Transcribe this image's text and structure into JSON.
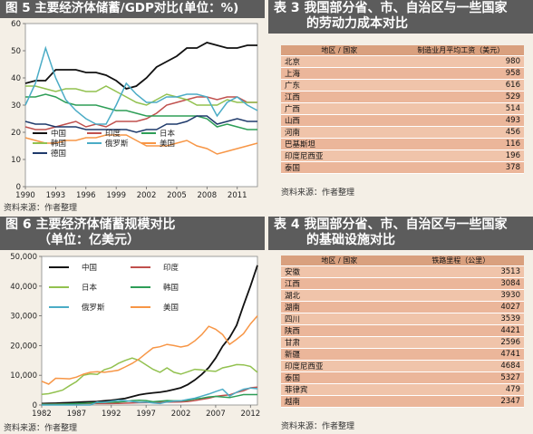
{
  "panels": {
    "fig5": {
      "title": "图 5  主要经济体储蓄/GDP对比(单位：%)",
      "source": "资料来源：作者整理"
    },
    "fig6": {
      "title1": "图 6  主要经济体储蓄规模对比",
      "title2": "（单位：亿美元）",
      "source": "资料来源：作者整理"
    },
    "tab3": {
      "title1": "表 3  我国部分省、市、自治区与一些国家",
      "title2": "的劳动力成本对比",
      "source": "资料来源：作者整理"
    },
    "tab4": {
      "title1": "表 4  我国部分省、市、自治区与一些国家",
      "title2": "的基础设施对比",
      "source": "资料来源：作者整理"
    }
  },
  "chart_data": [
    {
      "type": "line",
      "title": "图 5  主要经济体储蓄/GDP对比(单位：%)",
      "x": [
        1990,
        1991,
        1992,
        1993,
        1994,
        1995,
        1996,
        1997,
        1998,
        1999,
        2000,
        2001,
        2002,
        2003,
        2004,
        2005,
        2006,
        2007,
        2008,
        2009,
        2010,
        2011,
        2012,
        2013
      ],
      "xticks": [
        1990,
        1993,
        1996,
        1999,
        2002,
        2005,
        2008,
        2011
      ],
      "ylim": [
        0,
        60
      ],
      "yticks": [
        0,
        10,
        20,
        30,
        40,
        50,
        60
      ],
      "legend_position": "bottom-left",
      "series": [
        {
          "name": "中国",
          "color": "#111111",
          "values": [
            38,
            39,
            39,
            43,
            43,
            43,
            42,
            42,
            41,
            39,
            36,
            37,
            40,
            44,
            46,
            48,
            51,
            51,
            53,
            52,
            51,
            51,
            52,
            52
          ]
        },
        {
          "name": "印度",
          "color": "#c0504d",
          "values": [
            22,
            21,
            21,
            22,
            23,
            24,
            22,
            23,
            22,
            24,
            24,
            24,
            25,
            27,
            30,
            31,
            32,
            33,
            33,
            32,
            33,
            33,
            31,
            31
          ]
        },
        {
          "name": "日本",
          "color": "#2e9e57",
          "values": [
            33,
            33,
            34,
            33,
            31,
            30,
            30,
            30,
            29,
            28,
            28,
            27,
            26,
            26,
            26,
            26,
            26,
            26,
            25,
            22,
            23,
            22,
            21,
            21
          ]
        },
        {
          "name": "韩国",
          "color": "#92c14f",
          "values": [
            37,
            37,
            36,
            35,
            36,
            36,
            35,
            35,
            37,
            35,
            33,
            31,
            30,
            32,
            34,
            33,
            32,
            30,
            30,
            30,
            32,
            31,
            31,
            31
          ]
        },
        {
          "name": "俄罗斯",
          "color": "#4bacc6",
          "values": [
            30,
            38,
            51,
            40,
            32,
            28,
            25,
            23,
            23,
            30,
            38,
            34,
            31,
            31,
            33,
            33,
            34,
            34,
            33,
            26,
            31,
            33,
            30,
            28
          ]
        },
        {
          "name": "美国",
          "color": "#f79646",
          "values": [
            18,
            17,
            16,
            16,
            17,
            17,
            18,
            18,
            19,
            19,
            19,
            17,
            15,
            15,
            15,
            16,
            17,
            15,
            14,
            12,
            13,
            14,
            15,
            16
          ]
        },
        {
          "name": "德国",
          "color": "#1f3a6b",
          "values": [
            24,
            23,
            23,
            22,
            22,
            22,
            21,
            21,
            21,
            21,
            21,
            20,
            21,
            21,
            23,
            23,
            24,
            26,
            26,
            23,
            24,
            25,
            24,
            24
          ]
        }
      ]
    },
    {
      "type": "line",
      "title": "图 6  主要经济体储蓄规模对比（单位：亿美元）",
      "x": [
        1982,
        1983,
        1984,
        1985,
        1986,
        1987,
        1988,
        1989,
        1990,
        1991,
        1992,
        1993,
        1994,
        1995,
        1996,
        1997,
        1998,
        1999,
        2000,
        2001,
        2002,
        2003,
        2004,
        2005,
        2006,
        2007,
        2008,
        2009,
        2010,
        2011,
        2012,
        2013
      ],
      "xticks": [
        1982,
        1987,
        1992,
        1997,
        2002,
        2007,
        2012
      ],
      "ylim": [
        0,
        50000
      ],
      "yticks": [
        0,
        10000,
        20000,
        30000,
        40000,
        50000
      ],
      "ytick_labels": [
        "0",
        "10,000",
        "20,000",
        "30,000",
        "40,000",
        "50,000"
      ],
      "legend_position": "top-center",
      "series": [
        {
          "name": "中国",
          "color": "#111111",
          "values": [
            500,
            550,
            600,
            700,
            800,
            900,
            1000,
            1100,
            1200,
            1400,
            1600,
            1900,
            2200,
            2800,
            3400,
            3800,
            4100,
            4300,
            4700,
            5200,
            5800,
            6900,
            8400,
            10300,
            12600,
            15800,
            19800,
            22700,
            26800,
            33500,
            40000,
            47000
          ]
        },
        {
          "name": "印度",
          "color": "#c0504d",
          "values": [
            300,
            320,
            340,
            360,
            380,
            400,
            450,
            480,
            500,
            500,
            500,
            550,
            600,
            700,
            750,
            800,
            850,
            900,
            950,
            1000,
            1050,
            1200,
            1500,
            1900,
            2300,
            2900,
            3200,
            3400,
            4200,
            4800,
            5800,
            6000
          ]
        },
        {
          "name": "日本",
          "color": "#92c14f",
          "values": [
            3600,
            3800,
            4400,
            5000,
            6500,
            7900,
            10000,
            10500,
            10300,
            11900,
            12600,
            14000,
            15000,
            15800,
            15000,
            13500,
            12000,
            11000,
            12500,
            11000,
            10400,
            11200,
            12000,
            11800,
            11500,
            11300,
            12500,
            13000,
            13600,
            13500,
            13000,
            11000
          ]
        },
        {
          "name": "韩国",
          "color": "#2e9e57",
          "values": [
            200,
            230,
            260,
            300,
            380,
            480,
            580,
            700,
            800,
            900,
            950,
            1000,
            1200,
            1500,
            1600,
            1500,
            1100,
            1300,
            1500,
            1400,
            1400,
            1600,
            2000,
            2300,
            2700,
            2900,
            2700,
            2500,
            3000,
            3500,
            3500,
            3500
          ]
        },
        {
          "name": "俄罗斯",
          "color": "#4bacc6",
          "values": [
            0,
            0,
            0,
            0,
            0,
            0,
            0,
            0,
            1000,
            900,
            1300,
            1600,
            1500,
            1200,
            900,
            1000,
            700,
            500,
            1000,
            1300,
            1400,
            1900,
            2300,
            3000,
            3700,
            4500,
            5300,
            3000,
            4300,
            5300,
            5700,
            5500
          ]
        },
        {
          "name": "美国",
          "color": "#f79646",
          "values": [
            8000,
            7000,
            9000,
            8900,
            8800,
            9400,
            10400,
            11000,
            11200,
            11000,
            11300,
            11700,
            12800,
            14000,
            15500,
            17400,
            19200,
            19600,
            20400,
            20000,
            19500,
            20000,
            21600,
            23700,
            26500,
            25500,
            23700,
            20400,
            22100,
            24000,
            27300,
            30000
          ]
        }
      ]
    },
    {
      "type": "table",
      "title": "表 3  我国部分省、市、自治区与一些国家的劳动力成本对比",
      "columns": [
        "地区 / 国家",
        "制造业月平均工资（美元）"
      ],
      "rows": [
        [
          "北京",
          "980"
        ],
        [
          "上海",
          "958"
        ],
        [
          "广东",
          "616"
        ],
        [
          "江西",
          "529"
        ],
        [
          "广西",
          "514"
        ],
        [
          "山西",
          "493"
        ],
        [
          "河南",
          "456"
        ],
        [
          "巴基斯坦",
          "116"
        ],
        [
          "印度尼西亚",
          "196"
        ],
        [
          "泰国",
          "378"
        ]
      ]
    },
    {
      "type": "table",
      "title": "表 4  我国部分省、市、自治区与一些国家的基础设施对比",
      "columns": [
        "地区 / 国家",
        "铁路里程（公里）"
      ],
      "rows": [
        [
          "安徽",
          "3513"
        ],
        [
          "江西",
          "3084"
        ],
        [
          "湖北",
          "3930"
        ],
        [
          "湖南",
          "4027"
        ],
        [
          "四川",
          "3539"
        ],
        [
          "陕西",
          "4421"
        ],
        [
          "甘肃",
          "2596"
        ],
        [
          "新疆",
          "4741"
        ],
        [
          "印度尼西亚",
          "4684"
        ],
        [
          "泰国",
          "5327"
        ],
        [
          "菲律宾",
          "479"
        ],
        [
          "越南",
          "2347"
        ]
      ]
    }
  ]
}
